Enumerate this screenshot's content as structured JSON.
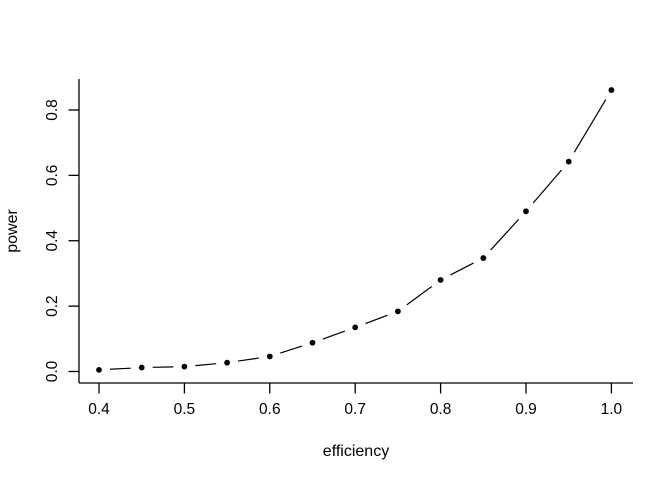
{
  "figure": {
    "background_color": "#ffffff",
    "ink_color": "#000000"
  },
  "chart_data": {
    "type": "line",
    "style": "r-base-type-b-points-with-gapped-segments",
    "title": "",
    "xlabel": "efficiency",
    "ylabel": "power",
    "x": [
      0.4,
      0.45,
      0.5,
      0.55,
      0.6,
      0.65,
      0.7,
      0.75,
      0.8,
      0.85,
      0.9,
      0.95,
      1.0
    ],
    "series": [
      {
        "name": "power",
        "values": [
          0.005,
          0.012,
          0.015,
          0.027,
          0.046,
          0.088,
          0.135,
          0.184,
          0.28,
          0.347,
          0.49,
          0.642,
          0.861
        ]
      }
    ],
    "xlim": [
      0.4,
      1.0
    ],
    "ylim": [
      0.0,
      0.8
    ],
    "xticks": [
      0.4,
      0.5,
      0.6,
      0.7,
      0.8,
      0.9,
      1.0
    ],
    "xtick_labels": [
      "0.4",
      "0.5",
      "0.6",
      "0.7",
      "0.8",
      "0.9",
      "1.0"
    ],
    "yticks": [
      0.0,
      0.2,
      0.4,
      0.6,
      0.8
    ],
    "ytick_labels": [
      "0.0",
      "0.2",
      "0.4",
      "0.6",
      "0.8"
    ],
    "grid": false,
    "legend": null,
    "marker": "filled-circle",
    "line_color": "#000000",
    "point_color": "#000000"
  }
}
